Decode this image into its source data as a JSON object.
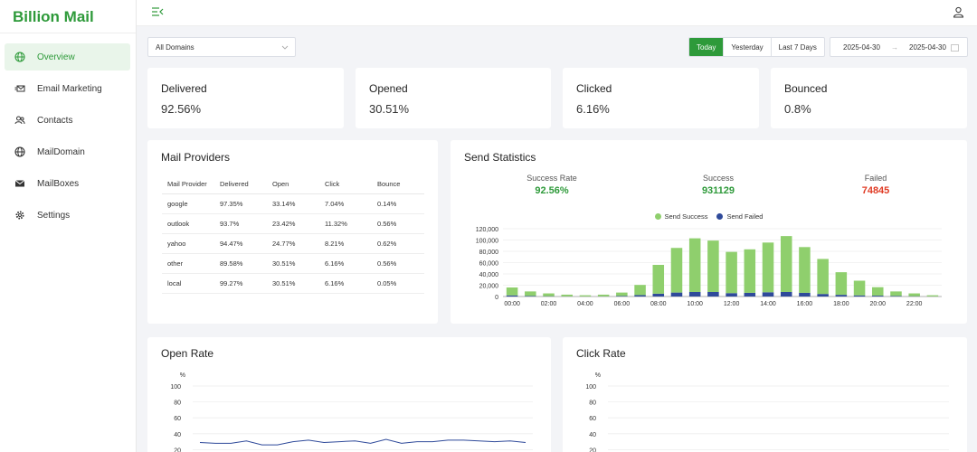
{
  "app": {
    "title": "Billion Mail"
  },
  "sidebar": {
    "items": [
      {
        "label": "Overview",
        "icon": "globe-icon",
        "active": true
      },
      {
        "label": "Email Marketing",
        "icon": "mail-send-icon",
        "active": false
      },
      {
        "label": "Contacts",
        "icon": "users-icon",
        "active": false
      },
      {
        "label": "MailDomain",
        "icon": "globe-icon",
        "active": false
      },
      {
        "label": "MailBoxes",
        "icon": "envelope-icon",
        "active": false
      },
      {
        "label": "Settings",
        "icon": "gear-icon",
        "active": false
      }
    ]
  },
  "filters": {
    "domain": "All Domains",
    "ranges": [
      "Today",
      "Yesterday",
      "Last 7 Days"
    ],
    "active_range": "Today",
    "date_start": "2025-04-30",
    "date_end": "2025-04-30"
  },
  "stats": [
    {
      "title": "Delivered",
      "value": "92.56%"
    },
    {
      "title": "Opened",
      "value": "30.51%"
    },
    {
      "title": "Clicked",
      "value": "6.16%"
    },
    {
      "title": "Bounced",
      "value": "0.8%"
    }
  ],
  "providers": {
    "title": "Mail Providers",
    "columns": [
      "Mail Provider",
      "Delivered",
      "Open",
      "Click",
      "Bounce"
    ],
    "rows": [
      [
        "google",
        "97.35%",
        "33.14%",
        "7.04%",
        "0.14%"
      ],
      [
        "outlook",
        "93.7%",
        "23.42%",
        "11.32%",
        "0.56%"
      ],
      [
        "yahoo",
        "94.47%",
        "24.77%",
        "8.21%",
        "0.62%"
      ],
      [
        "other",
        "89.58%",
        "30.51%",
        "6.16%",
        "0.56%"
      ],
      [
        "local",
        "99.27%",
        "30.51%",
        "6.16%",
        "0.05%"
      ]
    ]
  },
  "send_stats": {
    "title": "Send Statistics",
    "success_rate_label": "Success Rate",
    "success_rate": "92.56%",
    "success_label": "Success",
    "success": "931129",
    "failed_label": "Failed",
    "failed": "74845",
    "colors": {
      "success": "#8fcf6d",
      "failed": "#2f4a9a",
      "green_text": "#2e9a3a",
      "red_text": "#e03b24"
    }
  },
  "open_rate": {
    "title": "Open Rate"
  },
  "click_rate": {
    "title": "Click Rate"
  },
  "chart_data": [
    {
      "type": "bar",
      "stacked": true,
      "categories": [
        "00:00",
        "01:00",
        "02:00",
        "03:00",
        "04:00",
        "05:00",
        "06:00",
        "07:00",
        "08:00",
        "09:00",
        "10:00",
        "11:00",
        "12:00",
        "13:00",
        "14:00",
        "15:00",
        "16:00",
        "17:00",
        "18:00",
        "19:00",
        "20:00",
        "21:00",
        "22:00",
        "23:00"
      ],
      "x_tick_labels": [
        "00:00",
        "02:00",
        "04:00",
        "06:00",
        "08:00",
        "10:00",
        "12:00",
        "14:00",
        "16:00",
        "18:00",
        "20:00",
        "22:00"
      ],
      "series": [
        {
          "name": "Send Success",
          "values": [
            14000,
            8000,
            5000,
            3000,
            2000,
            3000,
            6000,
            18000,
            51000,
            79000,
            95000,
            91000,
            73000,
            77000,
            88000,
            99000,
            81000,
            62000,
            40000,
            26000,
            15000,
            8000,
            5000,
            2000
          ]
        },
        {
          "name": "Send Failed",
          "values": [
            2000,
            1000,
            500,
            300,
            200,
            300,
            1000,
            2500,
            5000,
            7000,
            8000,
            8000,
            6000,
            6500,
            7500,
            8000,
            6500,
            4500,
            3000,
            2000,
            1500,
            1000,
            500,
            200
          ]
        }
      ],
      "ylim": [
        0,
        120000
      ],
      "y_ticks": [
        "0",
        "20,000",
        "40,000",
        "60,000",
        "80,000",
        "100,000",
        "120,000"
      ]
    },
    {
      "type": "line",
      "title": "Open Rate",
      "ylabel": "%",
      "ylim": [
        0,
        100
      ],
      "y_ticks": [
        "20",
        "40",
        "60",
        "80",
        "100"
      ],
      "values": [
        29,
        28,
        28,
        31,
        26,
        26,
        30,
        32,
        29,
        30,
        31,
        28,
        33,
        28,
        30,
        30,
        32,
        32,
        31,
        30,
        31,
        29
      ]
    },
    {
      "type": "line",
      "title": "Click Rate",
      "ylabel": "%",
      "ylim": [
        0,
        100
      ],
      "y_ticks": [
        "20",
        "40",
        "60",
        "80",
        "100"
      ],
      "values": []
    }
  ]
}
